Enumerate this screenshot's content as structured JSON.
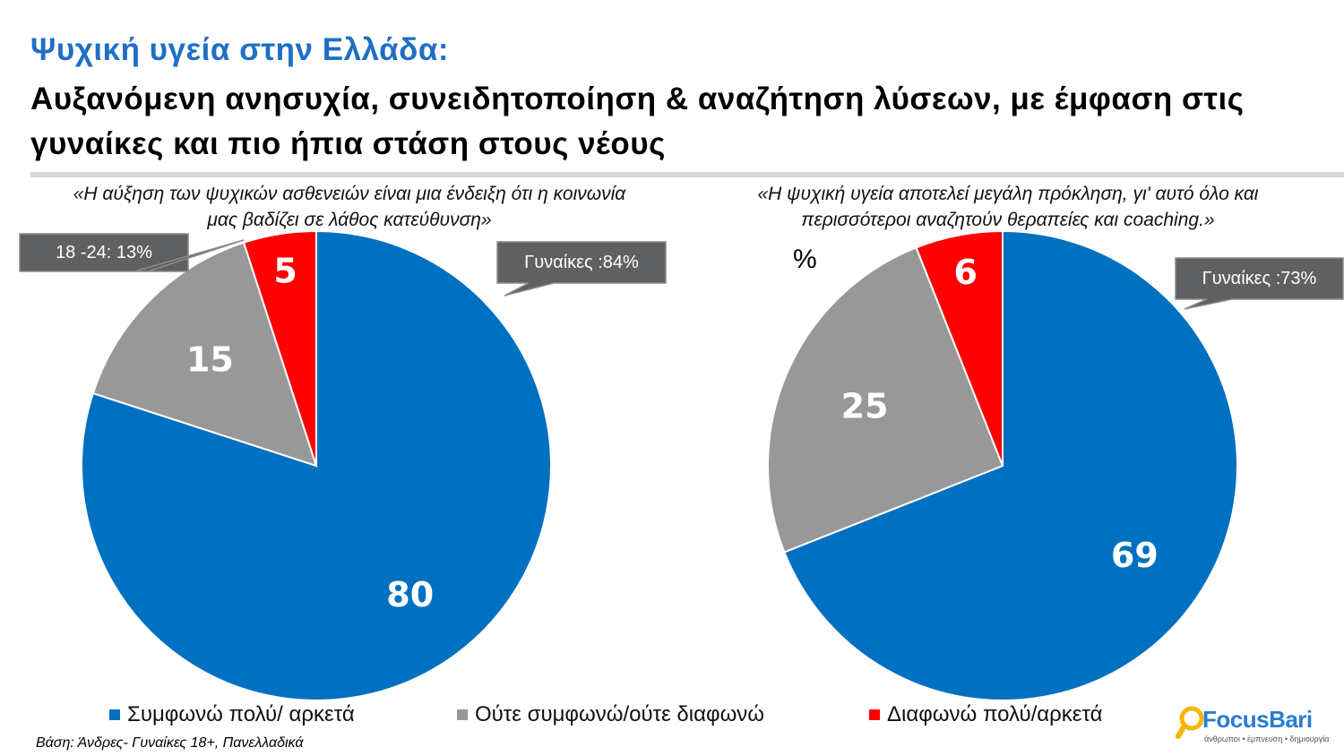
{
  "header": {
    "title_line1": "Ψυχική υγεία στην Ελλάδα:",
    "title_line2": "Αυξανόμενη ανησυχία, συνειδητοποίηση & αναζήτηση λύσεων, με έμφαση στις γυναίκες και πιο ήπια στάση στους νέους"
  },
  "percent_label": "%",
  "legend": [
    {
      "label": "Συμφωνώ πολύ/ αρκετά",
      "color": "#0070c0"
    },
    {
      "label": "Ούτε συμφωνώ/ούτε διαφωνώ",
      "color": "#989898"
    },
    {
      "label": "Διαφωνώ πολύ/αρκετά",
      "color": "#ff0000"
    }
  ],
  "footer": {
    "base_note": "Βάση: Άνδρες- Γυναίκες 18+, Πανελλαδικά",
    "logo_text": "FocusBari",
    "logo_tagline": "άνθρωποι • έμπνευση • δημιουργία"
  },
  "chart_data": [
    {
      "type": "pie",
      "title": "«Η αύξηση των ψυχικών ασθενειών είναι μια ένδειξη ότι η κοινωνία μας βαδίζει σε λάθος κατεύθυνση»",
      "slices": [
        {
          "label": "Συμφωνώ πολύ/ αρκετά",
          "value": 80,
          "color": "#0070c0"
        },
        {
          "label": "Ούτε συμφωνώ/ούτε διαφωνώ",
          "value": 15,
          "color": "#989898"
        },
        {
          "label": "Διαφωνώ πολύ/αρκετά",
          "value": 5,
          "color": "#ff0000"
        }
      ],
      "callouts": [
        "Γυναίκες :84%",
        "18 -24: 13%"
      ]
    },
    {
      "type": "pie",
      "title": "«Η ψυχική υγεία αποτελεί μεγάλη πρόκληση, γι' αυτό όλο και περισσότεροι αναζητούν θεραπείες και coaching.»",
      "slices": [
        {
          "label": "Συμφωνώ πολύ/ αρκετά",
          "value": 69,
          "color": "#0070c0"
        },
        {
          "label": "Ούτε συμφωνώ/ούτε διαφωνώ",
          "value": 25,
          "color": "#989898"
        },
        {
          "label": "Διαφωνώ πολύ/αρκετά",
          "value": 6,
          "color": "#ff0000"
        }
      ],
      "callouts": [
        "Γυναίκες :73%"
      ]
    }
  ]
}
